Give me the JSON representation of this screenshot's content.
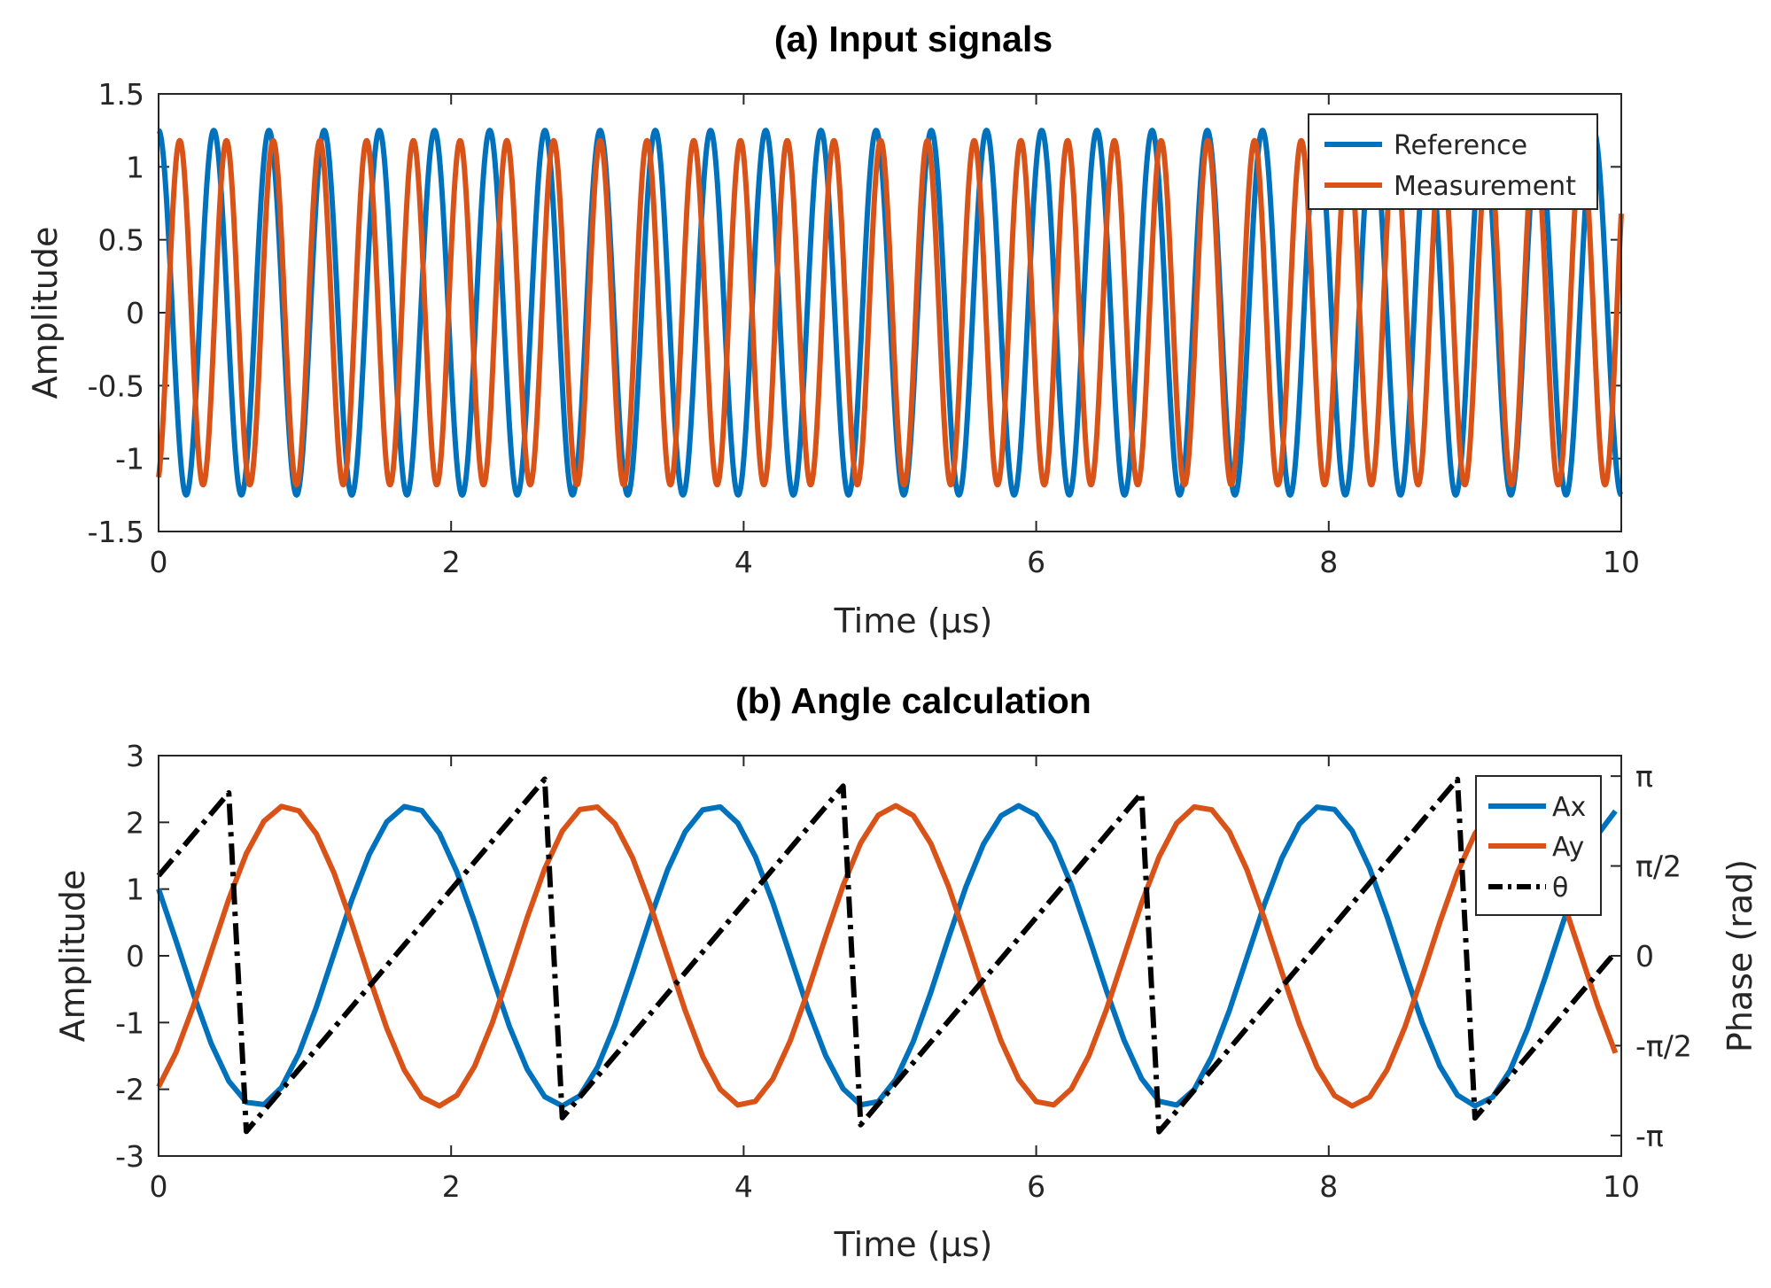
{
  "chart_data": [
    {
      "type": "line",
      "title": "(a) Input signals",
      "xlabel": "Time (µs)",
      "ylabel": "Amplitude",
      "xlim": [
        0,
        10
      ],
      "ylim": [
        -1.5,
        1.5
      ],
      "xticks": [
        0,
        2,
        4,
        6,
        8,
        10
      ],
      "xtick_labels": [
        "0",
        "2",
        "4",
        "6",
        "8",
        "10"
      ],
      "yticks": [
        1.5,
        1,
        0.5,
        0,
        -0.5,
        -1,
        -1.5
      ],
      "ytick_labels": [
        "1.5",
        "1",
        "0.5",
        "0",
        "-0.5",
        "-1",
        "-1.5"
      ],
      "legend_position": "top-right",
      "series": [
        {
          "name": "Reference",
          "color": "#0072BD",
          "function": "cosine",
          "amplitude": 1.25,
          "frequency_MHz": 2.65,
          "phase_rad": 0
        },
        {
          "name": "Measurement",
          "color": "#D95319",
          "function": "cosine",
          "amplitude": 1.18,
          "frequency_MHz": 3.13,
          "phase_rad": 3.44
        }
      ]
    },
    {
      "type": "line",
      "title": "(b) Angle calculation",
      "xlabel": "Time (µs)",
      "ylabel": "Amplitude",
      "ylabel_right": "Phase (rad)",
      "xlim": [
        0,
        10
      ],
      "ylim": [
        -3,
        3
      ],
      "ylim_right": [
        -3.5,
        3.5
      ],
      "xticks": [
        0,
        2,
        4,
        6,
        8,
        10
      ],
      "xtick_labels": [
        "0",
        "2",
        "4",
        "6",
        "8",
        "10"
      ],
      "yticks": [
        3,
        2,
        1,
        0,
        -1,
        -2,
        -3
      ],
      "ytick_labels": [
        "3",
        "2",
        "1",
        "0",
        "-1",
        "-2",
        "-3"
      ],
      "yticks_right": [
        3.14159,
        1.5708,
        0,
        -1.5708,
        -3.14159
      ],
      "ytick_labels_right": [
        "π",
        "π/2",
        "0",
        "-π/2",
        "-π"
      ],
      "legend_position": "top-right",
      "series": [
        {
          "name": "Ax",
          "color": "#0072BD",
          "axis": "left",
          "function": "cosine",
          "amplitude": 2.25,
          "frequency_MHz": 0.48,
          "phase_rad": 1.11
        },
        {
          "name": "Ay",
          "color": "#D95319",
          "axis": "left",
          "function": "sine",
          "amplitude": 2.25,
          "frequency_MHz": 0.48,
          "phase_rad": -1.06
        },
        {
          "name": "θ",
          "color": "#000000",
          "axis": "right",
          "style": "dash-dot",
          "function": "wrapped-phase",
          "slope_rad_per_us": 3.02,
          "phase_at_zero_rad": 1.4,
          "sample_step_us": 0.12
        }
      ]
    }
  ]
}
